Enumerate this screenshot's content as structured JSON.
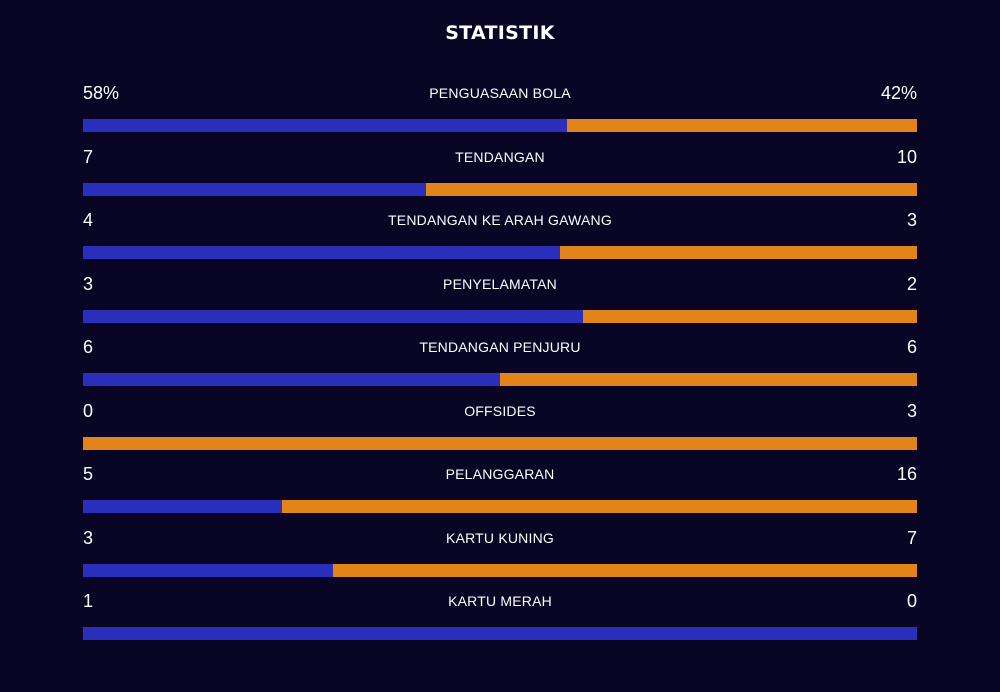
{
  "title": "STATISTIK",
  "colors": {
    "home": "#2a2fbc",
    "away": "#e3841b",
    "background": "#080624"
  },
  "stats": [
    {
      "label": "PENGUASAAN BOLA",
      "home": "58%",
      "away": "42%",
      "home_value": 58,
      "away_value": 42
    },
    {
      "label": "TENDANGAN",
      "home": "7",
      "away": "10",
      "home_value": 7,
      "away_value": 10
    },
    {
      "label": "TENDANGAN KE ARAH GAWANG",
      "home": "4",
      "away": "3",
      "home_value": 4,
      "away_value": 3
    },
    {
      "label": "PENYELAMATAN",
      "home": "3",
      "away": "2",
      "home_value": 3,
      "away_value": 2
    },
    {
      "label": "TENDANGAN PENJURU",
      "home": "6",
      "away": "6",
      "home_value": 6,
      "away_value": 6
    },
    {
      "label": "OFFSIDES",
      "home": "0",
      "away": "3",
      "home_value": 0,
      "away_value": 3
    },
    {
      "label": "PELANGGARAN",
      "home": "5",
      "away": "16",
      "home_value": 5,
      "away_value": 16
    },
    {
      "label": "KARTU KUNING",
      "home": "3",
      "away": "7",
      "home_value": 3,
      "away_value": 7
    },
    {
      "label": "KARTU MERAH",
      "home": "1",
      "away": "0",
      "home_value": 1,
      "away_value": 0
    }
  ]
}
